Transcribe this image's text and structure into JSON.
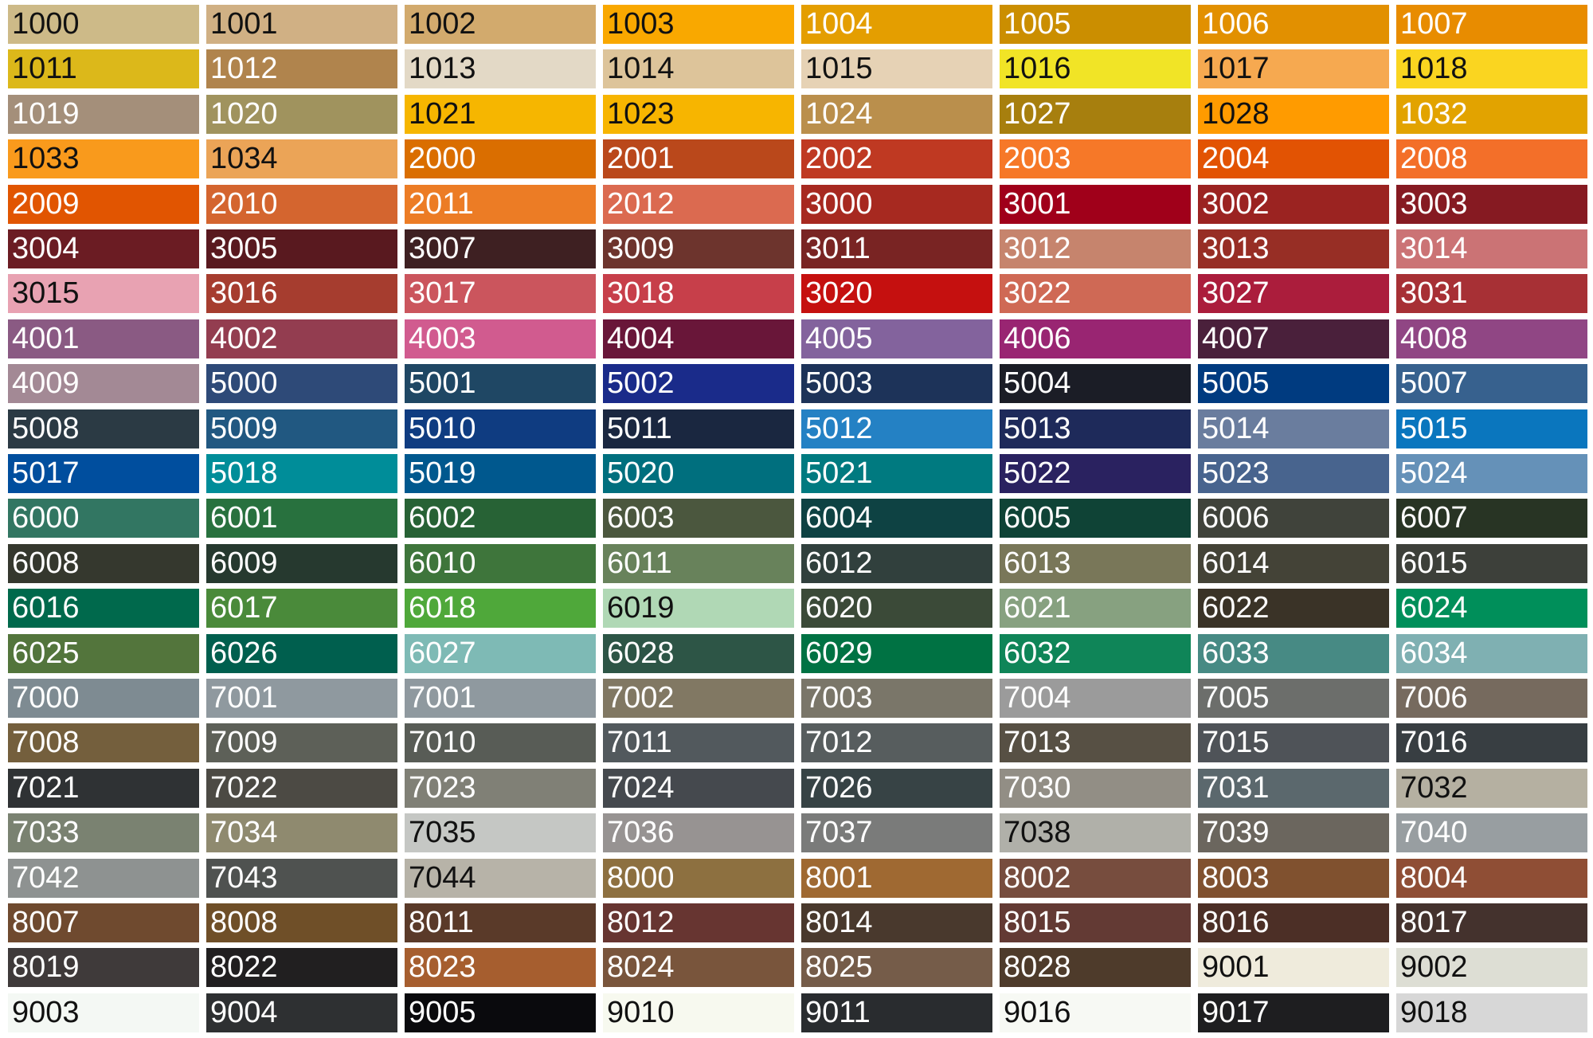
{
  "swatches": {
    "rows": [
      [
        {
          "label": "1000",
          "color": "#CDBA88",
          "ink": "dark"
        },
        {
          "label": "1001",
          "color": "#D0B084",
          "ink": "dark"
        },
        {
          "label": "1002",
          "color": "#D2AA6D",
          "ink": "dark"
        },
        {
          "label": "1003",
          "color": "#F9A800",
          "ink": "dark"
        },
        {
          "label": "1004",
          "color": "#E49E00",
          "ink": "light"
        },
        {
          "label": "1005",
          "color": "#CB8E00",
          "ink": "light"
        },
        {
          "label": "1006",
          "color": "#E29000",
          "ink": "light"
        },
        {
          "label": "1007",
          "color": "#E88C00",
          "ink": "light"
        }
      ],
      [
        {
          "label": "1011",
          "color": "#DCB81A",
          "ink": "dark"
        },
        {
          "label": "1012",
          "color": "#B0844D",
          "ink": "light"
        },
        {
          "label": "1013",
          "color": "#E3D9C6",
          "ink": "dark"
        },
        {
          "label": "1014",
          "color": "#DDC49A",
          "ink": "dark"
        },
        {
          "label": "1015",
          "color": "#E6D2B5",
          "ink": "dark"
        },
        {
          "label": "1016",
          "color": "#F1E426",
          "ink": "dark"
        },
        {
          "label": "1017",
          "color": "#F6A950",
          "ink": "dark"
        },
        {
          "label": "1018",
          "color": "#FAD520",
          "ink": "dark"
        }
      ],
      [
        {
          "label": "1019",
          "color": "#A48F7A",
          "ink": "light"
        },
        {
          "label": "1020",
          "color": "#A0935E",
          "ink": "light"
        },
        {
          "label": "1021",
          "color": "#F6B600",
          "ink": "dark"
        },
        {
          "label": "1023",
          "color": "#F7B500",
          "ink": "dark"
        },
        {
          "label": "1024",
          "color": "#BA8F4C",
          "ink": "light"
        },
        {
          "label": "1027",
          "color": "#A77F0E",
          "ink": "light"
        },
        {
          "label": "1028",
          "color": "#FF9B00",
          "ink": "dark"
        },
        {
          "label": "1032",
          "color": "#E2A300",
          "ink": "light"
        }
      ],
      [
        {
          "label": "1033",
          "color": "#F99A1C",
          "ink": "dark"
        },
        {
          "label": "1034",
          "color": "#EBA457",
          "ink": "dark"
        },
        {
          "label": "2000",
          "color": "#DA6E00",
          "ink": "light"
        },
        {
          "label": "2001",
          "color": "#BA481B",
          "ink": "light"
        },
        {
          "label": "2002",
          "color": "#BF3922",
          "ink": "light"
        },
        {
          "label": "2003",
          "color": "#F67828",
          "ink": "light"
        },
        {
          "label": "2004",
          "color": "#E25303",
          "ink": "light"
        },
        {
          "label": "2008",
          "color": "#F36F29",
          "ink": "light"
        }
      ],
      [
        {
          "label": "2009",
          "color": "#E15501",
          "ink": "light"
        },
        {
          "label": "2010",
          "color": "#D4652F",
          "ink": "light"
        },
        {
          "label": "2011",
          "color": "#EC7C25",
          "ink": "light"
        },
        {
          "label": "2012",
          "color": "#DB6A50",
          "ink": "light"
        },
        {
          "label": "3000",
          "color": "#A72920",
          "ink": "light"
        },
        {
          "label": "3001",
          "color": "#A0001A",
          "ink": "light"
        },
        {
          "label": "3002",
          "color": "#9B2321",
          "ink": "light"
        },
        {
          "label": "3003",
          "color": "#861A22",
          "ink": "light"
        }
      ],
      [
        {
          "label": "3004",
          "color": "#6B1C23",
          "ink": "light"
        },
        {
          "label": "3005",
          "color": "#59191F",
          "ink": "light"
        },
        {
          "label": "3007",
          "color": "#3E2022",
          "ink": "light"
        },
        {
          "label": "3009",
          "color": "#6D342D",
          "ink": "light"
        },
        {
          "label": "3011",
          "color": "#792423",
          "ink": "light"
        },
        {
          "label": "3012",
          "color": "#C6846D",
          "ink": "light"
        },
        {
          "label": "3013",
          "color": "#972E25",
          "ink": "light"
        },
        {
          "label": "3014",
          "color": "#CB7375",
          "ink": "light"
        }
      ],
      [
        {
          "label": "3015",
          "color": "#E8A2B2",
          "ink": "dark"
        },
        {
          "label": "3016",
          "color": "#A63D2F",
          "ink": "light"
        },
        {
          "label": "3017",
          "color": "#CB555D",
          "ink": "light"
        },
        {
          "label": "3018",
          "color": "#C73F4A",
          "ink": "light"
        },
        {
          "label": "3020",
          "color": "#C5100F",
          "ink": "light"
        },
        {
          "label": "3022",
          "color": "#CF6955",
          "ink": "light"
        },
        {
          "label": "3027",
          "color": "#AB1D3C",
          "ink": "light"
        },
        {
          "label": "3031",
          "color": "#A73035",
          "ink": "light"
        }
      ],
      [
        {
          "label": "4001",
          "color": "#8A5A83",
          "ink": "light"
        },
        {
          "label": "4002",
          "color": "#933D50",
          "ink": "light"
        },
        {
          "label": "4003",
          "color": "#D15B8F",
          "ink": "light"
        },
        {
          "label": "4004",
          "color": "#691639",
          "ink": "light"
        },
        {
          "label": "4005",
          "color": "#83639D",
          "ink": "light"
        },
        {
          "label": "4006",
          "color": "#992572",
          "ink": "light"
        },
        {
          "label": "4007",
          "color": "#4A203B",
          "ink": "light"
        },
        {
          "label": "4008",
          "color": "#904684",
          "ink": "light"
        }
      ],
      [
        {
          "label": "4009",
          "color": "#A38995",
          "ink": "light"
        },
        {
          "label": "5000",
          "color": "#2E4A78",
          "ink": "light"
        },
        {
          "label": "5001",
          "color": "#1F4764",
          "ink": "light"
        },
        {
          "label": "5002",
          "color": "#1A2B8A",
          "ink": "light"
        },
        {
          "label": "5003",
          "color": "#1D3359",
          "ink": "light"
        },
        {
          "label": "5004",
          "color": "#1B1D26",
          "ink": "light"
        },
        {
          "label": "5005",
          "color": "#003B80",
          "ink": "light"
        },
        {
          "label": "5007",
          "color": "#37618E",
          "ink": "light"
        }
      ],
      [
        {
          "label": "5008",
          "color": "#2B3A44",
          "ink": "light"
        },
        {
          "label": "5009",
          "color": "#215881",
          "ink": "light"
        },
        {
          "label": "5010",
          "color": "#0F3C81",
          "ink": "light"
        },
        {
          "label": "5011",
          "color": "#1A2740",
          "ink": "light"
        },
        {
          "label": "5012",
          "color": "#2481C4",
          "ink": "light"
        },
        {
          "label": "5013",
          "color": "#1E2A5A",
          "ink": "light"
        },
        {
          "label": "5014",
          "color": "#6A7D9E",
          "ink": "light"
        },
        {
          "label": "5015",
          "color": "#0A76BE",
          "ink": "light"
        }
      ],
      [
        {
          "label": "5017",
          "color": "#004E9E",
          "ink": "light"
        },
        {
          "label": "5018",
          "color": "#008D99",
          "ink": "light"
        },
        {
          "label": "5019",
          "color": "#00588E",
          "ink": "light"
        },
        {
          "label": "5020",
          "color": "#006F7E",
          "ink": "light"
        },
        {
          "label": "5021",
          "color": "#007A80",
          "ink": "light"
        },
        {
          "label": "5022",
          "color": "#2A2260",
          "ink": "light"
        },
        {
          "label": "5023",
          "color": "#48648E",
          "ink": "light"
        },
        {
          "label": "5024",
          "color": "#6591B8",
          "ink": "light"
        }
      ],
      [
        {
          "label": "6000",
          "color": "#327662",
          "ink": "light"
        },
        {
          "label": "6001",
          "color": "#28713E",
          "ink": "light"
        },
        {
          "label": "6002",
          "color": "#276235",
          "ink": "light"
        },
        {
          "label": "6003",
          "color": "#4B573E",
          "ink": "light"
        },
        {
          "label": "6004",
          "color": "#0E4243",
          "ink": "light"
        },
        {
          "label": "6005",
          "color": "#0F4336",
          "ink": "light"
        },
        {
          "label": "6006",
          "color": "#40433B",
          "ink": "light"
        },
        {
          "label": "6007",
          "color": "#283424",
          "ink": "light"
        }
      ],
      [
        {
          "label": "6008",
          "color": "#35382E",
          "ink": "light"
        },
        {
          "label": "6009",
          "color": "#26392F",
          "ink": "light"
        },
        {
          "label": "6010",
          "color": "#3E753B",
          "ink": "light"
        },
        {
          "label": "6011",
          "color": "#68825B",
          "ink": "light"
        },
        {
          "label": "6012",
          "color": "#31403D",
          "ink": "light"
        },
        {
          "label": "6013",
          "color": "#797759",
          "ink": "light"
        },
        {
          "label": "6014",
          "color": "#444337",
          "ink": "light"
        },
        {
          "label": "6015",
          "color": "#3D403A",
          "ink": "light"
        }
      ],
      [
        {
          "label": "6016",
          "color": "#00694C",
          "ink": "light"
        },
        {
          "label": "6017",
          "color": "#4A8A3A",
          "ink": "light"
        },
        {
          "label": "6018",
          "color": "#4FA83A",
          "ink": "light"
        },
        {
          "label": "6019",
          "color": "#B0D8B5",
          "ink": "dark"
        },
        {
          "label": "6020",
          "color": "#3B4A38",
          "ink": "light"
        },
        {
          "label": "6021",
          "color": "#87A180",
          "ink": "light"
        },
        {
          "label": "6022",
          "color": "#3A3327",
          "ink": "light"
        },
        {
          "label": "6024",
          "color": "#008F5A",
          "ink": "light"
        }
      ],
      [
        {
          "label": "6025",
          "color": "#53753C",
          "ink": "light"
        },
        {
          "label": "6026",
          "color": "#005F4E",
          "ink": "light"
        },
        {
          "label": "6027",
          "color": "#7EBAB5",
          "ink": "light"
        },
        {
          "label": "6028",
          "color": "#2D5546",
          "ink": "light"
        },
        {
          "label": "6029",
          "color": "#007243",
          "ink": "light"
        },
        {
          "label": "6032",
          "color": "#0F8558",
          "ink": "light"
        },
        {
          "label": "6033",
          "color": "#478A84",
          "ink": "light"
        },
        {
          "label": "6034",
          "color": "#7FB0B2",
          "ink": "light"
        }
      ],
      [
        {
          "label": "7000",
          "color": "#7E8B92",
          "ink": "light"
        },
        {
          "label": "7001",
          "color": "#8F999F",
          "ink": "light"
        },
        {
          "label": "7001",
          "color": "#8F999F",
          "ink": "light"
        },
        {
          "label": "7002",
          "color": "#817863",
          "ink": "light"
        },
        {
          "label": "7003",
          "color": "#7A7669",
          "ink": "light"
        },
        {
          "label": "7004",
          "color": "#9B9B9B",
          "ink": "light"
        },
        {
          "label": "7005",
          "color": "#6C6E6B",
          "ink": "light"
        },
        {
          "label": "7006",
          "color": "#766A5E",
          "ink": "light"
        }
      ],
      [
        {
          "label": "7008",
          "color": "#745F3D",
          "ink": "light"
        },
        {
          "label": "7009",
          "color": "#5D6058",
          "ink": "light"
        },
        {
          "label": "7010",
          "color": "#585C56",
          "ink": "light"
        },
        {
          "label": "7011",
          "color": "#52595D",
          "ink": "light"
        },
        {
          "label": "7012",
          "color": "#575D5E",
          "ink": "light"
        },
        {
          "label": "7013",
          "color": "#575044",
          "ink": "light"
        },
        {
          "label": "7015",
          "color": "#4F5358",
          "ink": "light"
        },
        {
          "label": "7016",
          "color": "#383E42",
          "ink": "light"
        }
      ],
      [
        {
          "label": "7021",
          "color": "#2F3234",
          "ink": "light"
        },
        {
          "label": "7022",
          "color": "#4C4A44",
          "ink": "light"
        },
        {
          "label": "7023",
          "color": "#808076",
          "ink": "light"
        },
        {
          "label": "7024",
          "color": "#45494E",
          "ink": "light"
        },
        {
          "label": "7026",
          "color": "#374345",
          "ink": "light"
        },
        {
          "label": "7030",
          "color": "#928E85",
          "ink": "light"
        },
        {
          "label": "7031",
          "color": "#5B686D",
          "ink": "light"
        },
        {
          "label": "7032",
          "color": "#B5B0A1",
          "ink": "dark"
        }
      ],
      [
        {
          "label": "7033",
          "color": "#7A8271",
          "ink": "light"
        },
        {
          "label": "7034",
          "color": "#8F8A6F",
          "ink": "light"
        },
        {
          "label": "7035",
          "color": "#C5C7C4",
          "ink": "dark"
        },
        {
          "label": "7036",
          "color": "#979392",
          "ink": "light"
        },
        {
          "label": "7037",
          "color": "#7A7B7A",
          "ink": "light"
        },
        {
          "label": "7038",
          "color": "#B0B0A9",
          "ink": "dark"
        },
        {
          "label": "7039",
          "color": "#6B665E",
          "ink": "light"
        },
        {
          "label": "7040",
          "color": "#989EA1",
          "ink": "light"
        }
      ],
      [
        {
          "label": "7042",
          "color": "#8E9291",
          "ink": "light"
        },
        {
          "label": "7043",
          "color": "#4F5250",
          "ink": "light"
        },
        {
          "label": "7044",
          "color": "#B7B3A8",
          "ink": "dark"
        },
        {
          "label": "8000",
          "color": "#8D7040",
          "ink": "light"
        },
        {
          "label": "8001",
          "color": "#9F6932",
          "ink": "light"
        },
        {
          "label": "8002",
          "color": "#774D3E",
          "ink": "light"
        },
        {
          "label": "8003",
          "color": "#80512F",
          "ink": "light"
        },
        {
          "label": "8004",
          "color": "#8F4E35",
          "ink": "light"
        }
      ],
      [
        {
          "label": "8007",
          "color": "#6F4A2F",
          "ink": "light"
        },
        {
          "label": "8008",
          "color": "#6F4F28",
          "ink": "light"
        },
        {
          "label": "8011",
          "color": "#5A3A29",
          "ink": "light"
        },
        {
          "label": "8012",
          "color": "#673531",
          "ink": "light"
        },
        {
          "label": "8014",
          "color": "#49392D",
          "ink": "light"
        },
        {
          "label": "8015",
          "color": "#633A34",
          "ink": "light"
        },
        {
          "label": "8016",
          "color": "#4C2F26",
          "ink": "light"
        },
        {
          "label": "8017",
          "color": "#44322D",
          "ink": "light"
        }
      ],
      [
        {
          "label": "8019",
          "color": "#3F3A3A",
          "ink": "light"
        },
        {
          "label": "8022",
          "color": "#211F20",
          "ink": "light"
        },
        {
          "label": "8023",
          "color": "#A65E2F",
          "ink": "light"
        },
        {
          "label": "8024",
          "color": "#79553C",
          "ink": "light"
        },
        {
          "label": "8025",
          "color": "#755C49",
          "ink": "light"
        },
        {
          "label": "8028",
          "color": "#4E3B2B",
          "ink": "light"
        },
        {
          "label": "9001",
          "color": "#EFEBDC",
          "ink": "dark"
        },
        {
          "label": "9002",
          "color": "#DDDED4",
          "ink": "dark"
        }
      ],
      [
        {
          "label": "9003",
          "color": "#F4F8F4",
          "ink": "dark"
        },
        {
          "label": "9004",
          "color": "#2E3032",
          "ink": "light"
        },
        {
          "label": "9005",
          "color": "#0A0A0D",
          "ink": "light"
        },
        {
          "label": "9010",
          "color": "#F7F9EF",
          "ink": "dark"
        },
        {
          "label": "9011",
          "color": "#292C2F",
          "ink": "light"
        },
        {
          "label": "9016",
          "color": "#F7F9F4",
          "ink": "dark"
        },
        {
          "label": "9017",
          "color": "#1E1E20",
          "ink": "light"
        },
        {
          "label": "9018",
          "color": "#D7D7D7",
          "ink": "dark"
        }
      ]
    ]
  }
}
